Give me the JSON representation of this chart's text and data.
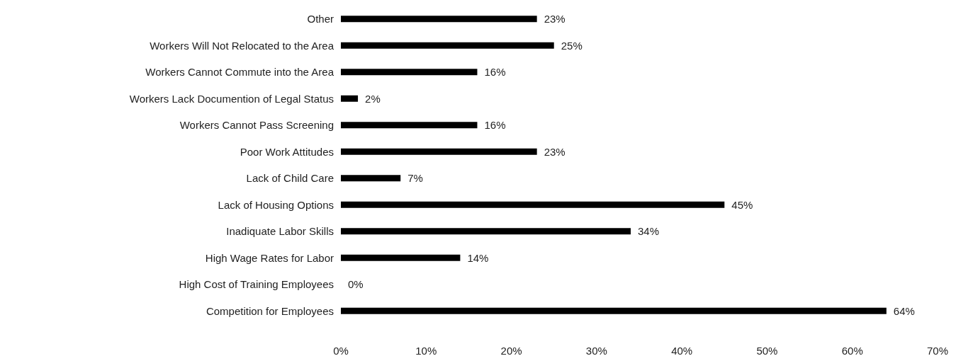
{
  "chart_data": {
    "type": "bar",
    "orientation": "horizontal",
    "categories": [
      "Other",
      "Workers Will Not Relocated to the Area",
      "Workers Cannot Commute into the Area",
      "Workers Lack Documention of Legal Status",
      "Workers Cannot Pass Screening",
      "Poor Work Attitudes",
      "Lack of Child Care",
      "Lack of Housing Options",
      "Inadiquate Labor Skills",
      "High Wage Rates for Labor",
      "High Cost of Training Employees",
      "Competition for Employees"
    ],
    "values": [
      23,
      25,
      16,
      2,
      16,
      23,
      7,
      45,
      34,
      14,
      0,
      64
    ],
    "value_labels": [
      "23%",
      "25%",
      "16%",
      "2%",
      "16%",
      "23%",
      "7%",
      "45%",
      "34%",
      "14%",
      "0%",
      "64%"
    ],
    "color": "#000000",
    "xlim": [
      0,
      70
    ],
    "xticks": [
      {
        "value": 0,
        "label": "0%"
      },
      {
        "value": 10,
        "label": "10%"
      },
      {
        "value": 20,
        "label": "20%"
      },
      {
        "value": 30,
        "label": "30%"
      },
      {
        "value": 40,
        "label": "40%"
      },
      {
        "value": 50,
        "label": "50%"
      },
      {
        "value": 60,
        "label": "60%"
      },
      {
        "value": 70,
        "label": "70%"
      }
    ],
    "grid": false
  }
}
